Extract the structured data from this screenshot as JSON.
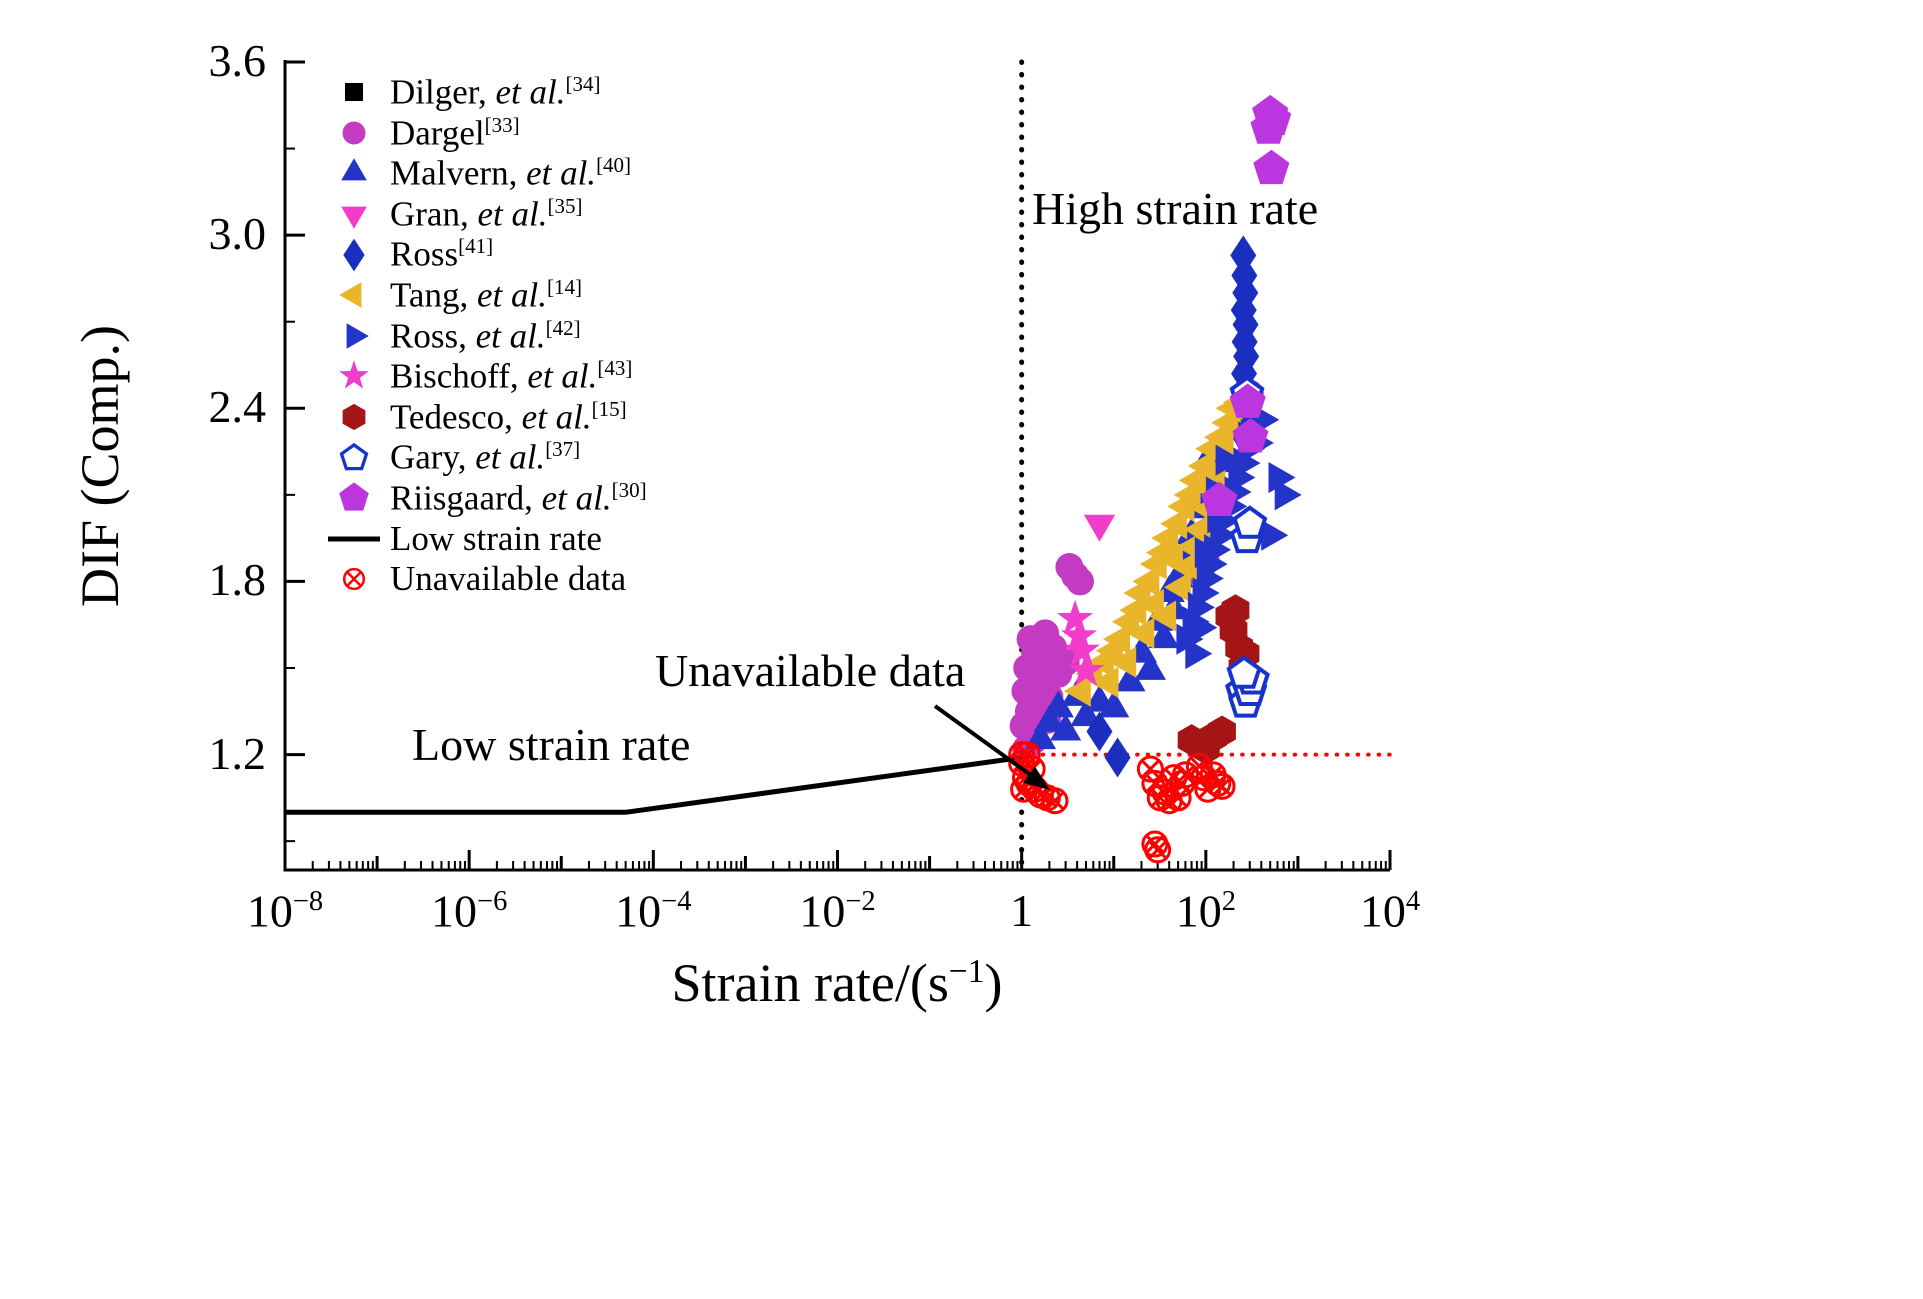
{
  "chart_data": {
    "type": "scatter",
    "title": "",
    "xlabel": {
      "pre": "Strain rate/(s",
      "sup": "−1",
      "post": ")"
    },
    "ylabel": "DIF (Comp.)",
    "x_scale": "log",
    "xlim_exp": [
      -8,
      4
    ],
    "ylim": [
      0.8,
      3.6
    ],
    "grid": false,
    "legend_position": "upper-left",
    "x_ticks": [
      {
        "exp": -8,
        "label": {
          "base": "10",
          "sup": "−8"
        }
      },
      {
        "exp": -6,
        "label": {
          "base": "10",
          "sup": "−6"
        }
      },
      {
        "exp": -4,
        "label": {
          "base": "10",
          "sup": "−4"
        }
      },
      {
        "exp": -2,
        "label": {
          "base": "10",
          "sup": "−2"
        }
      },
      {
        "exp": 0,
        "label": {
          "base": "1",
          "sup": ""
        }
      },
      {
        "exp": 2,
        "label": {
          "base": "10",
          "sup": "2"
        }
      },
      {
        "exp": 4,
        "label": {
          "base": "10",
          "sup": "4"
        }
      }
    ],
    "y_ticks": [
      {
        "value": 1.2,
        "label": "1.2"
      },
      {
        "value": 1.8,
        "label": "1.8"
      },
      {
        "value": 2.4,
        "label": "2.4"
      },
      {
        "value": 3.0,
        "label": "3.0"
      },
      {
        "value": 3.6,
        "label": "3.6"
      }
    ],
    "y_minor_ticks": [
      0.9,
      1.5,
      2.1,
      2.7,
      3.3
    ],
    "series": [
      {
        "id": "dilger",
        "label": {
          "name": "Dilger, ",
          "etal": "et al.",
          "ref": "[34]"
        },
        "marker": "square",
        "color": "#000000",
        "points": []
      },
      {
        "id": "dargel",
        "label": {
          "name": "Dargel",
          "etal": "",
          "ref": "[33]"
        },
        "marker": "circle",
        "color": "#C23BC2",
        "points": [
          [
            1.05,
            1.3
          ],
          [
            1.1,
            1.42
          ],
          [
            1.15,
            1.5
          ],
          [
            1.2,
            1.35
          ],
          [
            1.25,
            1.6
          ],
          [
            1.3,
            1.47
          ],
          [
            1.4,
            1.55
          ],
          [
            1.5,
            1.38
          ],
          [
            1.6,
            1.52
          ],
          [
            1.7,
            1.44
          ],
          [
            1.8,
            1.62
          ],
          [
            2.0,
            1.4
          ],
          [
            2.2,
            1.57
          ],
          [
            2.5,
            1.48
          ],
          [
            3.0,
            1.52
          ],
          [
            3.3,
            1.85
          ],
          [
            3.8,
            1.82
          ],
          [
            4.3,
            1.8
          ],
          [
            1.35,
            1.25
          ],
          [
            1.9,
            1.32
          ],
          [
            87,
            1.83
          ],
          [
            100,
            1.87
          ],
          [
            300,
            2.45
          ],
          [
            1.12,
            1.22
          ]
        ]
      },
      {
        "id": "malvern",
        "label": {
          "name": "Malvern, ",
          "etal": "et al.",
          "ref": "[40]"
        },
        "marker": "triangle-up",
        "color": "#2433C8",
        "points": [
          [
            1.6,
            1.25
          ],
          [
            2.0,
            1.31
          ],
          [
            2.5,
            1.36
          ],
          [
            3.0,
            1.28
          ],
          [
            4.0,
            1.4
          ],
          [
            5.0,
            1.33
          ],
          [
            7.0,
            1.38
          ],
          [
            10,
            1.36
          ],
          [
            15,
            1.45
          ],
          [
            20,
            1.55
          ],
          [
            25,
            1.49
          ],
          [
            30,
            1.66
          ],
          [
            35,
            1.6
          ],
          [
            40,
            1.76
          ],
          [
            50,
            1.81
          ],
          [
            60,
            1.9
          ],
          [
            70,
            1.96
          ],
          [
            80,
            2.05
          ],
          [
            90,
            2.1
          ],
          [
            100,
            2.16
          ],
          [
            120,
            2.25
          ],
          [
            150,
            2.21
          ],
          [
            45,
            1.7
          ],
          [
            65,
            1.87
          ],
          [
            110,
            2.08
          ]
        ]
      },
      {
        "id": "gran",
        "label": {
          "name": "Gran, ",
          "etal": "et al.",
          "ref": "[35]"
        },
        "marker": "triangle-down",
        "color": "#F23CCB",
        "points": [
          [
            7,
            2.0
          ],
          [
            220,
            2.33
          ]
        ]
      },
      {
        "id": "ross41",
        "label": {
          "name": "Ross",
          "etal": "",
          "ref": "[41]"
        },
        "marker": "diamond",
        "color": "#1A2FBF",
        "points": [
          [
            255,
            2.93
          ],
          [
            262,
            2.86
          ],
          [
            268,
            2.8
          ],
          [
            258,
            2.74
          ],
          [
            270,
            2.69
          ],
          [
            264,
            2.63
          ],
          [
            274,
            2.58
          ],
          [
            260,
            2.52
          ],
          [
            272,
            2.47
          ],
          [
            280,
            2.43
          ],
          [
            250,
            2.35
          ],
          [
            266,
            2.3
          ],
          [
            7,
            1.28
          ],
          [
            11,
            1.19
          ]
        ]
      },
      {
        "id": "tang",
        "label": {
          "name": "Tang, ",
          "etal": "et al.",
          "ref": "[14]"
        },
        "marker": "triangle-left",
        "color": "#E9B62B",
        "points": [
          [
            4.5,
            1.42
          ],
          [
            6,
            1.48
          ],
          [
            8,
            1.52
          ],
          [
            9,
            1.45
          ],
          [
            10,
            1.56
          ],
          [
            12,
            1.6
          ],
          [
            14,
            1.52
          ],
          [
            15,
            1.66
          ],
          [
            18,
            1.7
          ],
          [
            20,
            1.76
          ],
          [
            22,
            1.62
          ],
          [
            25,
            1.8
          ],
          [
            28,
            1.72
          ],
          [
            30,
            1.86
          ],
          [
            35,
            1.9
          ],
          [
            38,
            1.68
          ],
          [
            40,
            1.95
          ],
          [
            45,
            1.88
          ],
          [
            50,
            2.0
          ],
          [
            55,
            1.78
          ],
          [
            60,
            2.06
          ],
          [
            65,
            1.85
          ],
          [
            70,
            2.1
          ],
          [
            75,
            1.92
          ],
          [
            80,
            2.15
          ],
          [
            90,
            1.98
          ],
          [
            100,
            2.2
          ],
          [
            110,
            2.05
          ],
          [
            120,
            2.26
          ],
          [
            130,
            2.18
          ],
          [
            150,
            2.3
          ],
          [
            160,
            2.28
          ],
          [
            180,
            2.35
          ],
          [
            200,
            2.4
          ],
          [
            240,
            2.42
          ]
        ]
      },
      {
        "id": "ross42",
        "label": {
          "name": "Ross, ",
          "etal": "et al.",
          "ref": "[42]"
        },
        "marker": "triangle-right",
        "color": "#2433C8",
        "points": [
          [
            60,
            1.6
          ],
          [
            70,
            1.66
          ],
          [
            80,
            1.71
          ],
          [
            90,
            1.76
          ],
          [
            100,
            1.81
          ],
          [
            110,
            1.86
          ],
          [
            120,
            1.91
          ],
          [
            140,
            1.96
          ],
          [
            150,
            2.01
          ],
          [
            180,
            2.06
          ],
          [
            200,
            2.11
          ],
          [
            220,
            2.16
          ],
          [
            250,
            2.21
          ],
          [
            280,
            2.26
          ],
          [
            300,
            2.31
          ],
          [
            350,
            2.28
          ],
          [
            400,
            2.36
          ],
          [
            500,
            1.96
          ],
          [
            600,
            2.16
          ],
          [
            700,
            2.1
          ],
          [
            160,
            2.22
          ],
          [
            130,
            2.02
          ],
          [
            95,
            1.9
          ],
          [
            75,
            1.55
          ],
          [
            85,
            1.64
          ]
        ]
      },
      {
        "id": "bischoff",
        "label": {
          "name": "Bischoff, ",
          "etal": "et al.",
          "ref": "[43]"
        },
        "marker": "star",
        "color": "#F23CCB",
        "points": [
          [
            3.8,
            1.67
          ],
          [
            4.5,
            1.56
          ],
          [
            5.0,
            1.49
          ],
          [
            4.2,
            1.61
          ]
        ]
      },
      {
        "id": "tedesco",
        "label": {
          "name": "Tedesco, ",
          "etal": "et al.",
          "ref": "[15]"
        },
        "marker": "hexagon",
        "color": "#A51515",
        "points": [
          [
            70,
            1.25
          ],
          [
            100,
            1.22
          ],
          [
            120,
            1.26
          ],
          [
            150,
            1.28
          ],
          [
            180,
            1.68
          ],
          [
            200,
            1.63
          ],
          [
            230,
            1.57
          ],
          [
            270,
            1.55
          ],
          [
            210,
            1.7
          ],
          [
            250,
            1.5
          ]
        ]
      },
      {
        "id": "gary",
        "label": {
          "name": "Gary, ",
          "etal": "et al.",
          "ref": "[37]"
        },
        "marker": "pentagon-open",
        "color": "#1733CC",
        "points": [
          [
            250,
            1.42
          ],
          [
            270,
            1.38
          ],
          [
            300,
            1.42
          ],
          [
            320,
            1.46
          ],
          [
            280,
            1.95
          ],
          [
            300,
            2.0
          ],
          [
            280,
            2.45
          ],
          [
            260,
            1.48
          ]
        ]
      },
      {
        "id": "riisgaard",
        "label": {
          "name": "Riisgaard, ",
          "etal": "et al.",
          "ref": "[30]"
        },
        "marker": "pentagon",
        "color": "#BC36E0",
        "points": [
          [
            500,
            3.42
          ],
          [
            540,
            3.4
          ],
          [
            480,
            3.37
          ],
          [
            515,
            3.23
          ],
          [
            285,
            2.42
          ],
          [
            305,
            2.3
          ],
          [
            140,
            2.08
          ]
        ]
      },
      {
        "id": "low-strain-line",
        "label": {
          "name": "Low strain rate",
          "etal": "",
          "ref": ""
        },
        "marker": "line",
        "color": "#000000",
        "points": [
          [
            1e-08,
            1.0
          ],
          [
            5e-05,
            1.0
          ],
          [
            1,
            1.19
          ]
        ]
      },
      {
        "id": "unavailable",
        "label": {
          "name": "Unavailable data",
          "etal": "",
          "ref": ""
        },
        "marker": "circle-x",
        "color": "#FF0000",
        "points": [
          [
            1.0,
            1.17
          ],
          [
            1.05,
            1.08
          ],
          [
            1.1,
            1.12
          ],
          [
            1.2,
            1.1
          ],
          [
            1.3,
            1.15
          ],
          [
            1.4,
            1.08
          ],
          [
            1.6,
            1.06
          ],
          [
            1.9,
            1.05
          ],
          [
            2.3,
            1.04
          ],
          [
            25,
            1.15
          ],
          [
            28,
            1.1
          ],
          [
            32,
            1.05
          ],
          [
            36,
            1.07
          ],
          [
            40,
            1.04
          ],
          [
            45,
            1.12
          ],
          [
            50,
            1.05
          ],
          [
            55,
            1.1
          ],
          [
            60,
            1.13
          ],
          [
            28,
            0.89
          ],
          [
            30,
            0.87
          ],
          [
            85,
            1.16
          ],
          [
            95,
            1.12
          ],
          [
            105,
            1.08
          ],
          [
            120,
            1.13
          ],
          [
            135,
            1.1
          ],
          [
            150,
            1.09
          ],
          [
            1.0,
            1.2
          ],
          [
            1.15,
            1.2
          ]
        ]
      }
    ],
    "ref_lines": {
      "vertical_dotted": {
        "x": 1,
        "color": "#000000"
      },
      "horizontal_dotted": {
        "y": 1.2,
        "x_from": 1,
        "x_to": 10000,
        "color": "#FF0000"
      }
    },
    "annotations": {
      "high_strain": "High strain rate",
      "low_strain": "Low strain rate",
      "unavailable": "Unavailable data"
    }
  }
}
